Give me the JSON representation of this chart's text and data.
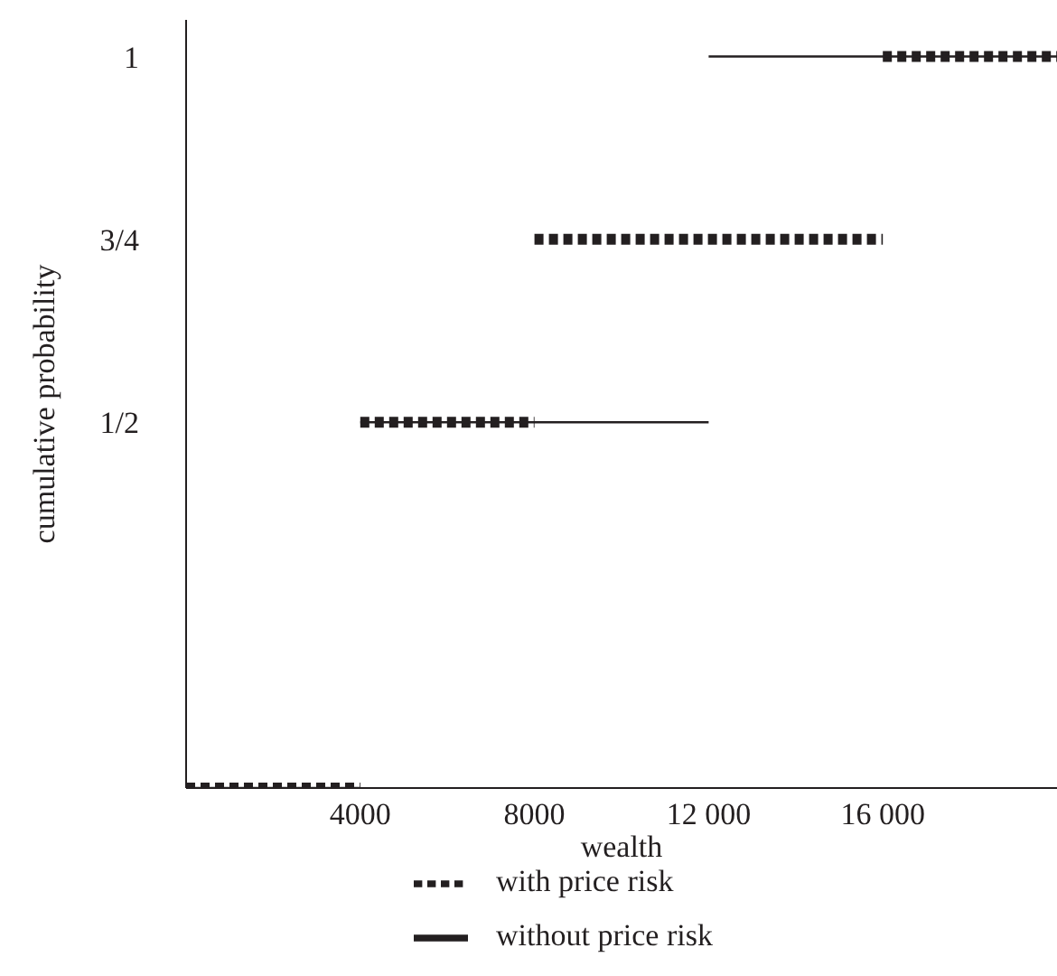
{
  "chart_data": {
    "type": "line",
    "xlabel": "wealth",
    "ylabel": "cumulative probability",
    "xlim": [
      0,
      20000
    ],
    "ylim": [
      0,
      1.05
    ],
    "xticks": [
      4000,
      8000,
      {
        "value": 12000,
        "label": "12 000"
      },
      {
        "value": 16000,
        "label": "16 000"
      }
    ],
    "yticks": [
      {
        "value": 0.5,
        "label": "1/2"
      },
      {
        "value": 0.75,
        "label": "3/4"
      },
      1
    ],
    "legend": "bottom",
    "marker": "none",
    "series": [
      {
        "name": "with price risk",
        "color": "#231f20",
        "line_style": "dotted",
        "x": [
          0,
          4000,
          null,
          4000,
          8000,
          null,
          8000,
          16000,
          null,
          16000,
          20000
        ],
        "values": [
          0,
          0,
          null,
          0.5,
          0.5,
          null,
          0.75,
          0.75,
          null,
          1,
          1
        ]
      },
      {
        "name": "without price risk",
        "color": "#231f20",
        "line_style": "solid",
        "x": [
          0,
          4000,
          null,
          4000,
          12000,
          null,
          12000,
          20000
        ],
        "values": [
          0,
          0,
          null,
          0.5,
          0.5,
          null,
          1,
          1
        ]
      }
    ]
  }
}
